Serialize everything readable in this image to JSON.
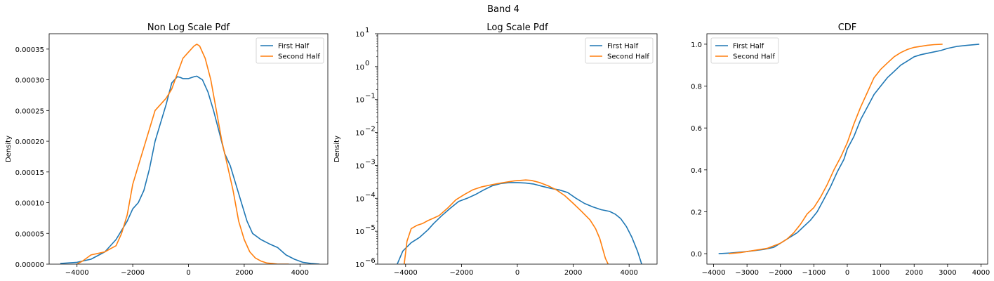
{
  "figure": {
    "suptitle": "Band 4"
  },
  "colors": {
    "first_half": "#1f77b4",
    "second_half": "#ff7f0e"
  },
  "chart_data": [
    {
      "type": "line",
      "title": "Non Log Scale Pdf",
      "xlabel": "",
      "ylabel": "Density",
      "xlim": [
        -5000,
        5000
      ],
      "ylim": [
        0,
        0.000375
      ],
      "xticks": [
        -4000,
        -2000,
        0,
        2000,
        4000
      ],
      "xtick_labels": [
        "−4000",
        "−2000",
        "0",
        "2000",
        "4000"
      ],
      "yticks": [
        0,
        5e-05,
        0.0001,
        0.00015,
        0.0002,
        0.00025,
        0.0003,
        0.00035
      ],
      "ytick_labels": [
        "0.00000",
        "0.00005",
        "0.00010",
        "0.00015",
        "0.00020",
        "0.00025",
        "0.00030",
        "0.00035"
      ],
      "legend": {
        "placement": "top-right"
      },
      "series": [
        {
          "name": "First Half",
          "x": [
            -4600,
            -4000,
            -3500,
            -3000,
            -2600,
            -2200,
            -2000,
            -1800,
            -1600,
            -1400,
            -1200,
            -1000,
            -800,
            -600,
            -400,
            -300,
            -200,
            0,
            200,
            300,
            500,
            700,
            900,
            1100,
            1300,
            1500,
            1700,
            1900,
            2100,
            2300,
            2600,
            2900,
            3200,
            3500,
            3800,
            4100,
            4400,
            4700
          ],
          "y": [
            1e-06,
            3e-06,
            8e-06,
            2e-05,
            4e-05,
            7e-05,
            9e-05,
            0.0001,
            0.00012,
            0.000155,
            0.0002,
            0.00023,
            0.00026,
            0.000295,
            0.000305,
            0.000304,
            0.000302,
            0.000302,
            0.000305,
            0.000306,
            0.0003,
            0.00028,
            0.00025,
            0.000215,
            0.00018,
            0.00016,
            0.00013,
            0.0001,
            7e-05,
            5e-05,
            4e-05,
            3.3e-05,
            2.7e-05,
            1.5e-05,
            8e-06,
            3e-06,
            1e-06,
            0.0
          ]
        },
        {
          "name": "Second Half",
          "x": [
            -4000,
            -3800,
            -3500,
            -3200,
            -3000,
            -2800,
            -2600,
            -2400,
            -2200,
            -2000,
            -1800,
            -1600,
            -1400,
            -1200,
            -1000,
            -800,
            -600,
            -400,
            -200,
            0,
            200,
            300,
            400,
            600,
            800,
            1000,
            1200,
            1400,
            1600,
            1800,
            2000,
            2200,
            2400,
            2600,
            2800,
            3000,
            3200,
            3400,
            3600
          ],
          "y": [
            0.0,
            5e-06,
            1.5e-05,
            1.8e-05,
            2e-05,
            2.5e-05,
            3e-05,
            5e-05,
            8e-05,
            0.00013,
            0.00016,
            0.00019,
            0.00022,
            0.00025,
            0.00026,
            0.00027,
            0.000285,
            0.00031,
            0.000335,
            0.000345,
            0.000355,
            0.000358,
            0.000355,
            0.000335,
            0.0003,
            0.00025,
            0.0002,
            0.00016,
            0.00012,
            7e-05,
            4e-05,
            2e-05,
            1e-05,
            5e-06,
            2e-06,
            1e-06,
            0.0,
            0.0,
            0.0
          ]
        }
      ]
    },
    {
      "type": "line",
      "title": "Log Scale Pdf",
      "xlabel": "",
      "ylabel": "Density",
      "yscale": "log",
      "xlim": [
        -5000,
        5000
      ],
      "ylim": [
        1e-06,
        10
      ],
      "xticks": [
        -4000,
        -2000,
        0,
        2000,
        4000
      ],
      "xtick_labels": [
        "−4000",
        "−2000",
        "0",
        "2000",
        "4000"
      ],
      "yticks": [
        1e-06,
        1e-05,
        0.0001,
        0.001,
        0.01,
        0.1,
        1,
        10
      ],
      "ytick_labels": [
        {
          "base": "10",
          "exp": "−6"
        },
        {
          "base": "10",
          "exp": "−5"
        },
        {
          "base": "10",
          "exp": "−4"
        },
        {
          "base": "10",
          "exp": "−3"
        },
        {
          "base": "10",
          "exp": "−2"
        },
        {
          "base": "10",
          "exp": "−1"
        },
        {
          "base": "10",
          "exp": "0"
        },
        {
          "base": "10",
          "exp": "1"
        }
      ],
      "legend": {
        "placement": "top-right"
      },
      "series": [
        {
          "name": "First Half",
          "x": [
            -4300,
            -4100,
            -3800,
            -3500,
            -3200,
            -3000,
            -2700,
            -2400,
            -2100,
            -1800,
            -1500,
            -1200,
            -900,
            -600,
            -300,
            0,
            300,
            600,
            900,
            1200,
            1500,
            1800,
            2100,
            2400,
            2700,
            3000,
            3300,
            3500,
            3700,
            3900,
            4100,
            4300,
            4450
          ],
          "y": [
            1e-06,
            2.5e-06,
            4.5e-06,
            6.5e-06,
            1.1e-05,
            1.7e-05,
            3e-05,
            5e-05,
            8e-05,
            0.0001,
            0.00013,
            0.00018,
            0.00024,
            0.00028,
            0.0003,
            0.0003,
            0.00029,
            0.00027,
            0.00023,
            0.0002,
            0.00018,
            0.00015,
            0.0001,
            7e-05,
            5.5e-05,
            4.5e-05,
            4e-05,
            3.3e-05,
            2.4e-05,
            1.4e-05,
            6.5e-06,
            2.5e-06,
            1e-06
          ]
        },
        {
          "name": "Second Half",
          "x": [
            -4050,
            -3950,
            -3800,
            -3600,
            -3400,
            -3200,
            -3000,
            -2800,
            -2500,
            -2200,
            -1900,
            -1600,
            -1300,
            -1000,
            -700,
            -400,
            -100,
            100,
            300,
            500,
            800,
            1100,
            1400,
            1700,
            2000,
            2300,
            2600,
            2800,
            2950,
            3050,
            3150,
            3250
          ],
          "y": [
            1e-06,
            5e-06,
            1.2e-05,
            1.5e-05,
            1.7e-05,
            2.1e-05,
            2.5e-05,
            3e-05,
            5e-05,
            9e-05,
            0.00013,
            0.00018,
            0.00022,
            0.00025,
            0.00028,
            0.00031,
            0.00034,
            0.00035,
            0.00036,
            0.00035,
            0.0003,
            0.00024,
            0.00018,
            0.00012,
            7e-05,
            4e-05,
            2.2e-05,
            1.2e-05,
            6e-06,
            3e-06,
            1.5e-06,
            1e-06
          ]
        }
      ]
    },
    {
      "type": "line",
      "title": "CDF",
      "xlabel": "",
      "ylabel": "",
      "xlim": [
        -4200,
        4200
      ],
      "ylim": [
        -0.05,
        1.05
      ],
      "xticks": [
        -4000,
        -3000,
        -2000,
        -1000,
        0,
        1000,
        2000,
        3000,
        4000
      ],
      "xtick_labels": [
        "−4000",
        "−3000",
        "−2000",
        "−1000",
        "0",
        "1000",
        "2000",
        "3000",
        "4000"
      ],
      "yticks": [
        0.0,
        0.2,
        0.4,
        0.6,
        0.8,
        1.0
      ],
      "ytick_labels": [
        "0.0",
        "0.2",
        "0.4",
        "0.6",
        "0.8",
        "1.0"
      ],
      "legend": {
        "placement": "top-left"
      },
      "series": [
        {
          "name": "First Half",
          "x": [
            -3850,
            -3500,
            -3000,
            -2500,
            -2200,
            -2000,
            -1800,
            -1500,
            -1300,
            -1100,
            -900,
            -700,
            -500,
            -300,
            -100,
            0,
            200,
            400,
            600,
            800,
            1000,
            1200,
            1400,
            1600,
            1800,
            2000,
            2200,
            2500,
            2800,
            3000,
            3300,
            3600,
            3950
          ],
          "y": [
            0.0,
            0.003,
            0.01,
            0.02,
            0.03,
            0.05,
            0.07,
            0.1,
            0.13,
            0.16,
            0.2,
            0.26,
            0.32,
            0.39,
            0.45,
            0.5,
            0.56,
            0.64,
            0.7,
            0.76,
            0.8,
            0.84,
            0.87,
            0.9,
            0.92,
            0.94,
            0.95,
            0.96,
            0.97,
            0.98,
            0.99,
            0.995,
            1.0
          ]
        },
        {
          "name": "Second Half",
          "x": [
            -3550,
            -3200,
            -2800,
            -2400,
            -2000,
            -1800,
            -1600,
            -1400,
            -1200,
            -1000,
            -800,
            -600,
            -400,
            -200,
            0,
            200,
            400,
            600,
            800,
            1000,
            1200,
            1400,
            1600,
            1800,
            2000,
            2200,
            2400,
            2600,
            2850
          ],
          "y": [
            0.0,
            0.005,
            0.015,
            0.025,
            0.05,
            0.07,
            0.1,
            0.14,
            0.19,
            0.22,
            0.27,
            0.33,
            0.4,
            0.46,
            0.53,
            0.62,
            0.7,
            0.77,
            0.84,
            0.88,
            0.91,
            0.94,
            0.96,
            0.975,
            0.985,
            0.99,
            0.995,
            0.998,
            1.0
          ]
        }
      ]
    }
  ]
}
